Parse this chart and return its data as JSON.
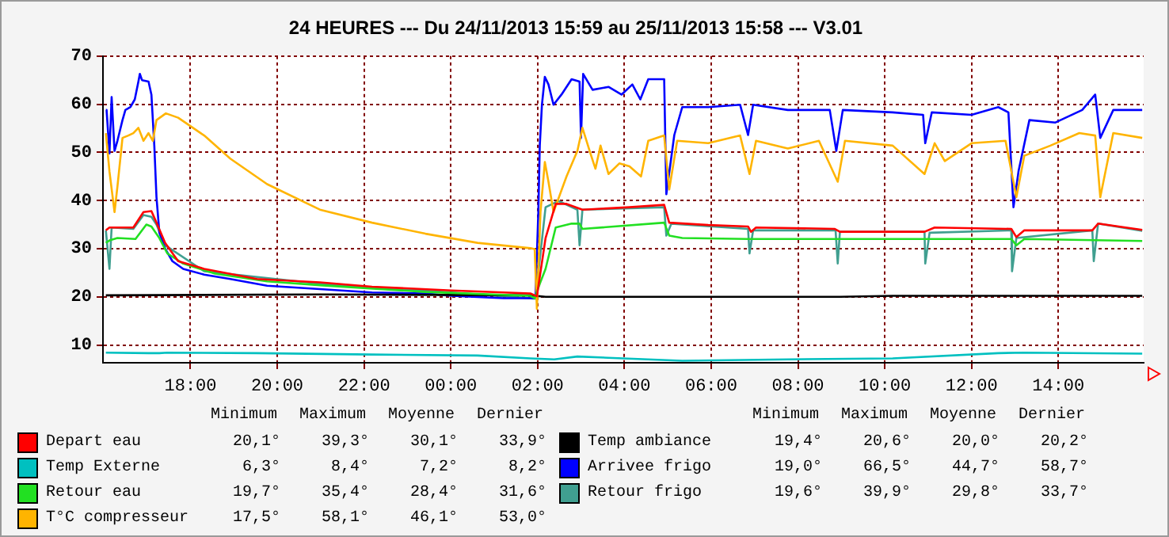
{
  "chart_data": {
    "type": "line",
    "title": "24 HEURES --- Du 24/11/2013 15:59 au 25/11/2013 15:58 --- V3.01",
    "xlim": [
      "2013-11-24T15:59",
      "2013-11-25T15:58"
    ],
    "xticks": [
      {
        "value": "2013-11-24T18:00",
        "label": "18:00"
      },
      {
        "value": "2013-11-24T20:00",
        "label": "20:00"
      },
      {
        "value": "2013-11-24T22:00",
        "label": "22:00"
      },
      {
        "value": "2013-11-25T00:00",
        "label": "00:00"
      },
      {
        "value": "2013-11-25T02:00",
        "label": "02:00"
      },
      {
        "value": "2013-11-25T04:00",
        "label": "04:00"
      },
      {
        "value": "2013-11-25T06:00",
        "label": "06:00"
      },
      {
        "value": "2013-11-25T08:00",
        "label": "08:00"
      },
      {
        "value": "2013-11-25T10:00",
        "label": "10:00"
      },
      {
        "value": "2013-11-25T12:00",
        "label": "12:00"
      },
      {
        "value": "2013-11-25T14:00",
        "label": "14:00"
      }
    ],
    "ylim": [
      6.3,
      70
    ],
    "yticks": [
      10,
      20,
      30,
      40,
      50,
      60,
      70
    ],
    "grid": true,
    "legend": "bottom",
    "marker": "none",
    "annotations": [
      "Minimum",
      "Maximum",
      "Moyenne",
      "Dernier",
      "20,1°",
      "39,3°",
      "30,1°",
      "33,9°",
      "6,3°",
      "8,4°",
      "7,2°",
      "8,2°",
      "19,7°",
      "35,4°",
      "28,4°",
      "31,6°",
      "17,5°",
      "58,1°",
      "46,1°",
      "53,0°",
      "19,4°",
      "20,6°",
      "20,0°",
      "20,2°",
      "19,0°",
      "66,5°",
      "44,7°",
      "58,7°",
      "19,6°",
      "39,9°",
      "29,8°",
      "33,7°"
    ],
    "series": [
      {
        "name": "Depart eau",
        "color": "#ff0000",
        "x": [
          "2013-11-24T16:03",
          "2013-11-24T16:08",
          "2013-11-24T16:41",
          "2013-11-24T16:55",
          "2013-11-24T17:06",
          "2013-11-24T17:13",
          "2013-11-24T17:25",
          "2013-11-24T17:43",
          "2013-11-24T18:19",
          "2013-11-24T19:32",
          "2013-11-24T20:59",
          "2013-11-24T22:11",
          "2013-11-25T00:01",
          "2013-11-25T01:50",
          "2013-11-25T01:59",
          "2013-11-25T02:11",
          "2013-11-25T02:25",
          "2013-11-25T02:40",
          "2013-11-25T03:02",
          "2013-11-25T04:07",
          "2013-11-25T04:55",
          "2013-11-25T05:02",
          "2013-11-25T05:56",
          "2013-11-25T06:51",
          "2013-11-25T06:55",
          "2013-11-25T07:02",
          "2013-11-25T08:51",
          "2013-11-25T08:58",
          "2013-11-25T10:55",
          "2013-11-25T11:09",
          "2013-11-25T12:55",
          "2013-11-25T13:02",
          "2013-11-25T13:13",
          "2013-11-25T14:47",
          "2013-11-25T14:55",
          "2013-11-25T15:56"
        ],
        "values": [
          33.8,
          34.4,
          34.4,
          37.6,
          37.8,
          35.4,
          31.2,
          27.4,
          25.8,
          23.7,
          23,
          22.1,
          21.3,
          20.7,
          20.1,
          32.2,
          39.3,
          39.3,
          38.1,
          38.6,
          39.1,
          35.4,
          34.9,
          34.6,
          33.5,
          34.4,
          34.1,
          33.5,
          33.5,
          34.4,
          34.1,
          32.4,
          33.8,
          33.8,
          35.2,
          33.9
        ]
      },
      {
        "name": "Temp Externe",
        "color": "#00c0c0",
        "x": [
          "2013-11-24T16:03",
          "2013-11-24T17:02",
          "2013-11-24T17:17",
          "2013-11-24T17:28",
          "2013-11-24T19:32",
          "2013-11-24T22:11",
          "2013-11-25T00:37",
          "2013-11-25T01:50",
          "2013-11-25T02:23",
          "2013-11-25T02:55",
          "2013-11-25T05:20",
          "2013-11-25T07:46",
          "2013-11-25T10:11",
          "2013-11-25T12:37",
          "2013-11-25T13:13",
          "2013-11-25T15:56"
        ],
        "values": [
          8.4,
          8.3,
          8.3,
          8.4,
          8.3,
          8,
          7.8,
          7.2,
          7,
          7.6,
          6.7,
          7,
          7.2,
          8.3,
          8.4,
          8.2
        ]
      },
      {
        "name": "Retour eau",
        "color": "#22e022",
        "x": [
          "2013-11-24T16:03",
          "2013-11-24T16:08",
          "2013-11-24T16:19",
          "2013-11-24T16:44",
          "2013-11-24T16:59",
          "2013-11-24T17:06",
          "2013-11-24T17:17",
          "2013-11-24T17:28",
          "2013-11-24T17:50",
          "2013-11-24T18:34",
          "2013-11-24T19:46",
          "2013-11-24T20:59",
          "2013-11-24T23:25",
          "2013-11-25T01:50",
          "2013-11-25T01:56",
          "2013-11-25T02:03",
          "2013-11-25T02:11",
          "2013-11-25T02:25",
          "2013-11-25T02:47",
          "2013-11-25T02:58",
          "2013-11-25T03:02",
          "2013-11-25T04:55",
          "2013-11-25T05:02",
          "2013-11-25T05:20",
          "2013-11-25T06:51",
          "2013-11-25T08:58",
          "2013-11-25T12:55",
          "2013-11-25T13:02",
          "2013-11-25T13:13",
          "2013-11-25T15:56"
        ],
        "values": [
          31.2,
          31.7,
          32.2,
          32,
          35,
          34.6,
          32.2,
          29,
          26.9,
          24.8,
          23.2,
          22.4,
          21,
          20.2,
          19.7,
          22.7,
          25.8,
          34.4,
          35.2,
          35.2,
          34.1,
          35.4,
          32.7,
          32.2,
          32,
          32,
          32,
          30.7,
          32,
          31.6
        ]
      },
      {
        "name": "T°C compresseur",
        "color": "#ffb400",
        "x": [
          "2013-11-24T16:03",
          "2013-11-24T16:08",
          "2013-11-24T16:15",
          "2013-11-24T16:19",
          "2013-11-24T16:26",
          "2013-11-24T16:34",
          "2013-11-24T16:41",
          "2013-11-24T16:48",
          "2013-11-24T16:55",
          "2013-11-24T17:02",
          "2013-11-24T17:08",
          "2013-11-24T17:13",
          "2013-11-24T17:26",
          "2013-11-24T17:43",
          "2013-11-24T18:19",
          "2013-11-24T18:55",
          "2013-11-24T19:46",
          "2013-11-24T20:59",
          "2013-11-24T22:11",
          "2013-11-24T23:25",
          "2013-11-25T00:37",
          "2013-11-25T01:50",
          "2013-11-25T01:56",
          "2013-11-25T01:59",
          "2013-11-25T02:04",
          "2013-11-25T02:10",
          "2013-11-25T02:15",
          "2013-11-25T02:22",
          "2013-11-25T02:40",
          "2013-11-25T02:55",
          "2013-11-25T03:02",
          "2013-11-25T03:13",
          "2013-11-25T03:20",
          "2013-11-25T03:27",
          "2013-11-25T03:38",
          "2013-11-25T03:53",
          "2013-11-25T04:07",
          "2013-11-25T04:23",
          "2013-11-25T04:33",
          "2013-11-25T04:55",
          "2013-11-25T05:02",
          "2013-11-25T05:13",
          "2013-11-25T05:56",
          "2013-11-25T06:40",
          "2013-11-25T06:53",
          "2013-11-25T07:02",
          "2013-11-25T07:46",
          "2013-11-25T08:29",
          "2013-11-25T08:55",
          "2013-11-25T09:05",
          "2013-11-25T10:11",
          "2013-11-25T10:55",
          "2013-11-25T11:09",
          "2013-11-25T11:23",
          "2013-11-25T12:00",
          "2013-11-25T12:47",
          "2013-11-25T13:02",
          "2013-11-25T13:13",
          "2013-11-25T13:49",
          "2013-11-25T14:29",
          "2013-11-25T14:51",
          "2013-11-25T14:58",
          "2013-11-25T15:16",
          "2013-11-25T15:56"
        ],
        "values": [
          54,
          46,
          37.6,
          42.9,
          53,
          53.5,
          54,
          55.1,
          52.4,
          54,
          52.4,
          56.7,
          58.1,
          57.2,
          53.5,
          48.7,
          43.4,
          38.1,
          35.4,
          33.1,
          31.2,
          30.1,
          29.9,
          17.5,
          37.6,
          48,
          43.9,
          37.6,
          45,
          50.3,
          55.1,
          49.8,
          46.6,
          51.4,
          45.5,
          47.7,
          47.1,
          45,
          52.4,
          53.5,
          42.3,
          52.4,
          51.9,
          53.5,
          45.5,
          52.4,
          50.8,
          52.4,
          43.9,
          52.4,
          51.4,
          45.5,
          51.9,
          48.2,
          51.9,
          52.4,
          40.7,
          49.3,
          51.4,
          54,
          53.5,
          40.7,
          54,
          53
        ]
      },
      {
        "name": "Temp ambiance",
        "color": "#000000",
        "x": [
          "2013-11-24T16:03",
          "2013-11-24T20:59",
          "2013-11-25T01:50",
          "2013-11-25T02:11",
          "2013-11-25T08:58",
          "2013-11-25T10:11",
          "2013-11-25T15:56"
        ],
        "values": [
          20.3,
          20.5,
          20.3,
          20,
          20,
          20.2,
          20.2
        ]
      },
      {
        "name": "Arrivee frigo",
        "color": "#0000ff",
        "x": [
          "2013-11-24T16:03",
          "2013-11-24T16:04",
          "2013-11-24T16:08",
          "2013-11-24T16:11",
          "2013-11-24T16:15",
          "2013-11-24T16:19",
          "2013-11-24T16:26",
          "2013-11-24T16:30",
          "2013-11-24T16:37",
          "2013-11-24T16:43",
          "2013-11-24T16:48",
          "2013-11-24T16:50",
          "2013-11-24T16:53",
          "2013-11-24T17:02",
          "2013-11-24T17:06",
          "2013-11-24T17:10",
          "2013-11-24T17:13",
          "2013-11-24T17:17",
          "2013-11-24T17:25",
          "2013-11-24T17:35",
          "2013-11-24T17:50",
          "2013-11-24T18:19",
          "2013-11-24T18:55",
          "2013-11-24T19:46",
          "2013-11-24T20:59",
          "2013-11-24T22:11",
          "2013-11-24T23:25",
          "2013-11-25T00:01",
          "2013-11-25T01:13",
          "2013-11-25T01:57",
          "2013-11-25T02:01",
          "2013-11-25T02:03",
          "2013-11-25T02:06",
          "2013-11-25T02:10",
          "2013-11-25T02:15",
          "2013-11-25T02:22",
          "2013-11-25T02:33",
          "2013-11-25T02:47",
          "2013-11-25T02:58",
          "2013-11-25T03:00",
          "2013-11-25T03:03",
          "2013-11-25T03:16",
          "2013-11-25T03:38",
          "2013-11-25T03:56",
          "2013-11-25T04:11",
          "2013-11-25T04:22",
          "2013-11-25T04:33",
          "2013-11-25T04:55",
          "2013-11-25T04:58",
          "2013-11-25T05:09",
          "2013-11-25T05:20",
          "2013-11-25T05:56",
          "2013-11-25T06:40",
          "2013-11-25T06:51",
          "2013-11-25T06:58",
          "2013-11-25T07:46",
          "2013-11-25T08:44",
          "2013-11-25T08:53",
          "2013-11-25T09:02",
          "2013-11-25T10:11",
          "2013-11-25T10:53",
          "2013-11-25T10:56",
          "2013-11-25T11:05",
          "2013-11-25T12:00",
          "2013-11-25T12:37",
          "2013-11-25T12:51",
          "2013-11-25T12:58",
          "2013-11-25T13:05",
          "2013-11-25T13:20",
          "2013-11-25T13:56",
          "2013-11-25T14:33",
          "2013-11-25T14:51",
          "2013-11-25T14:58",
          "2013-11-25T15:16",
          "2013-11-25T15:56"
        ],
        "values": [
          58.8,
          58.8,
          49.8,
          61.5,
          50.3,
          52.4,
          56.7,
          58.8,
          59.4,
          61,
          64.7,
          66.3,
          65,
          64.7,
          62,
          51.4,
          40.7,
          33.3,
          30,
          27.4,
          25.8,
          24.6,
          23.7,
          22.3,
          21.6,
          20.9,
          20.7,
          20.2,
          19.7,
          19.7,
          37.6,
          51.4,
          59.9,
          65.7,
          64.1,
          59.9,
          62,
          65.2,
          64.7,
          53,
          66.3,
          63,
          63.6,
          62,
          64.1,
          61,
          65.2,
          65.2,
          41.3,
          53.6,
          59.4,
          59.4,
          59.9,
          53.6,
          59.9,
          58.8,
          58.8,
          50.3,
          58.8,
          58.3,
          57.8,
          51.9,
          58.3,
          57.8,
          59.4,
          58.3,
          38.6,
          46.1,
          56.7,
          56.2,
          58.8,
          62,
          53,
          58.8,
          58.8
        ]
      },
      {
        "name": "Retour frigo",
        "color": "#409f90",
        "x": [
          "2013-11-24T16:03",
          "2013-11-24T16:08",
          "2013-11-24T16:11",
          "2013-11-24T16:41",
          "2013-11-24T16:55",
          "2013-11-24T17:06",
          "2013-11-24T17:13",
          "2013-11-24T17:25",
          "2013-11-24T18:19",
          "2013-11-24T20:59",
          "2013-11-25T00:01",
          "2013-11-25T01:57",
          "2013-11-25T02:11",
          "2013-11-25T02:29",
          "2013-11-25T02:55",
          "2013-11-25T02:58",
          "2013-11-25T03:02",
          "2013-11-25T04:55",
          "2013-11-25T04:58",
          "2013-11-25T05:05",
          "2013-11-25T06:51",
          "2013-11-25T06:53",
          "2013-11-25T06:58",
          "2013-11-25T08:52",
          "2013-11-25T08:55",
          "2013-11-25T08:58",
          "2013-11-25T10:55",
          "2013-11-25T10:56",
          "2013-11-25T11:02",
          "2013-11-25T12:55",
          "2013-11-25T12:56",
          "2013-11-25T13:02",
          "2013-11-25T14:47",
          "2013-11-25T14:49",
          "2013-11-25T14:55",
          "2013-11-25T15:56"
        ],
        "values": [
          33.8,
          25.8,
          34.4,
          34.1,
          37,
          36.6,
          35,
          30.7,
          25.3,
          22.7,
          20.9,
          19.6,
          38.6,
          39.9,
          38.1,
          30.7,
          38.1,
          38.6,
          32.7,
          35.2,
          34.1,
          29,
          33.8,
          33.8,
          26.9,
          33.5,
          33.5,
          26.9,
          33.3,
          33.8,
          25.3,
          32.2,
          33.8,
          27.4,
          35.2,
          33.7
        ]
      }
    ]
  }
}
